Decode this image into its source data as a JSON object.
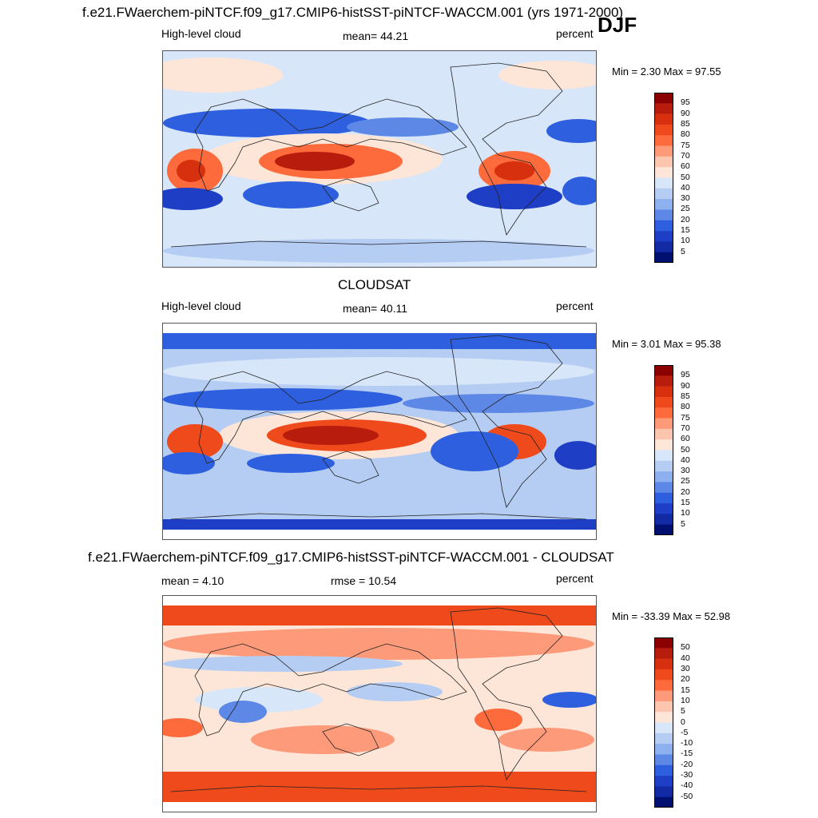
{
  "page": {
    "title_top": "f.e21.FWaerchem-piNTCF.f09_g17.CMIP6-histSST-piNTCF-WACCM.001 (yrs 1971-2000)",
    "season": "DJF",
    "title_mid": "CLOUDSAT",
    "title_bottom": "f.e21.FWaerchem-piNTCF.f09_g17.CMIP6-histSST-piNTCF-WACCM.001 - CLOUDSAT"
  },
  "chart_data": [
    {
      "type": "heatmap",
      "left_label": "High-level cloud",
      "center_label": "mean=  44.21",
      "units": "percent",
      "minmax": "Min =   2.30 Max =  97.55",
      "min": 2.3,
      "max": 97.55,
      "mean": 44.21,
      "colorbar_levels": [
        "95",
        "90",
        "85",
        "80",
        "75",
        "70",
        "60",
        "50",
        "40",
        "30",
        "25",
        "20",
        "15",
        "10",
        "5"
      ],
      "colorbar_colors": [
        "#8b0000",
        "#b71c0c",
        "#d7300f",
        "#ee4a1c",
        "#fd6a3c",
        "#fd9a7a",
        "#fcc5ae",
        "#fde6d8",
        "#d7e6f8",
        "#b5cdf3",
        "#8db0ef",
        "#5e88e6",
        "#2e5fde",
        "#1e3ec6",
        "#122aa3",
        "#001070"
      ]
    },
    {
      "type": "heatmap",
      "left_label": "High-level cloud",
      "center_label": "mean=  40.11",
      "units": "percent",
      "minmax": "Min =   3.01 Max =  95.38",
      "min": 3.01,
      "max": 95.38,
      "mean": 40.11,
      "colorbar_levels": [
        "95",
        "90",
        "85",
        "80",
        "75",
        "70",
        "60",
        "50",
        "40",
        "30",
        "25",
        "20",
        "15",
        "10",
        "5"
      ],
      "colorbar_colors": [
        "#8b0000",
        "#b71c0c",
        "#d7300f",
        "#ee4a1c",
        "#fd6a3c",
        "#fd9a7a",
        "#fcc5ae",
        "#fde6d8",
        "#d7e6f8",
        "#b5cdf3",
        "#8db0ef",
        "#5e88e6",
        "#2e5fde",
        "#1e3ec6",
        "#122aa3",
        "#001070"
      ]
    },
    {
      "type": "heatmap",
      "left_label": "mean =   4.10",
      "center_label": "rmse =  10.54",
      "units": "percent",
      "minmax": "Min = -33.39 Max =  52.98",
      "min": -33.39,
      "max": 52.98,
      "mean": 4.1,
      "rmse": 10.54,
      "colorbar_levels": [
        "50",
        "40",
        "30",
        "20",
        "15",
        "10",
        "5",
        "0",
        "-5",
        "-10",
        "-15",
        "-20",
        "-30",
        "-40",
        "-50"
      ],
      "colorbar_colors": [
        "#8b0000",
        "#b71c0c",
        "#d7300f",
        "#ee4a1c",
        "#fd6a3c",
        "#fd9a7a",
        "#fcc5ae",
        "#fde6d8",
        "#d7e6f8",
        "#b5cdf3",
        "#8db0ef",
        "#5e88e6",
        "#2e5fde",
        "#1e3ec6",
        "#122aa3",
        "#001070"
      ]
    }
  ]
}
